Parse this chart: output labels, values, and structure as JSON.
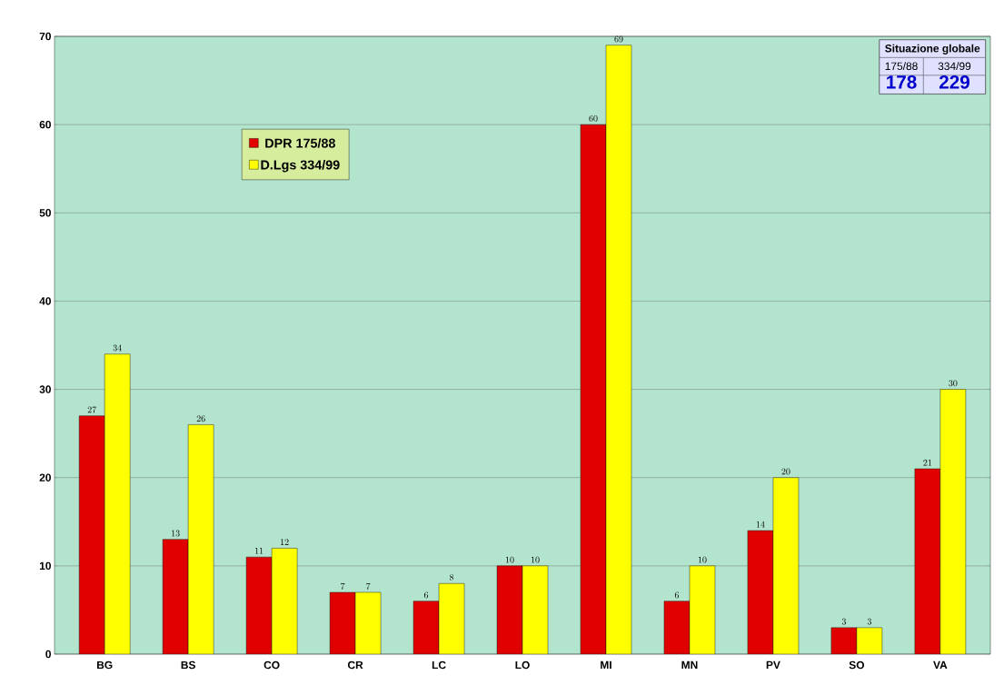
{
  "chart_data": {
    "type": "bar",
    "categories": [
      "BG",
      "BS",
      "CO",
      "CR",
      "LC",
      "LO",
      "MI",
      "MN",
      "PV",
      "SO",
      "VA"
    ],
    "series": [
      {
        "name": "DPR 175/88",
        "color": "#e00000",
        "values": [
          27,
          13,
          11,
          7,
          6,
          10,
          60,
          6,
          14,
          3,
          21
        ]
      },
      {
        "name": "D.Lgs 334/99",
        "color": "#ffff00",
        "values": [
          34,
          26,
          12,
          7,
          8,
          10,
          69,
          10,
          20,
          3,
          30
        ]
      }
    ],
    "ylim": [
      0,
      70
    ],
    "yticks": [
      0,
      10,
      20,
      30,
      40,
      50,
      60,
      70
    ],
    "grid": "y",
    "legend": "top left",
    "data_labels": true,
    "annotations": [
      "Situazione globale",
      "175/88",
      "334/99",
      "178",
      "229"
    ]
  }
}
